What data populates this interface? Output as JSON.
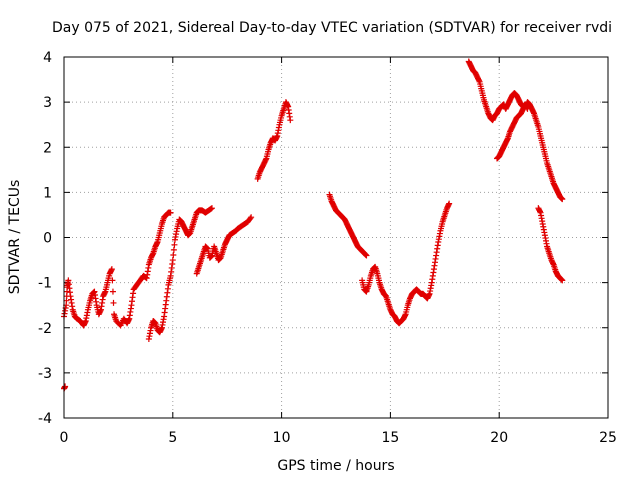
{
  "chart_data": {
    "type": "scatter",
    "title": "Day 075 of 2021, Sidereal Day-to-day VTEC variation (SDTVAR) for receiver rvdi",
    "xlabel": "GPS time / hours",
    "ylabel": "SDTVAR / TECUs",
    "xlim": [
      0,
      25
    ],
    "ylim": [
      -4,
      4
    ],
    "xticks": [
      0,
      5,
      10,
      15,
      20,
      25
    ],
    "yticks": [
      -4,
      -3,
      -2,
      -1,
      0,
      1,
      2,
      3,
      4
    ],
    "grid": true,
    "marker": "+",
    "color": "#e00000",
    "segments": [
      {
        "name": "seg-a",
        "points": [
          [
            0.0,
            -3.35
          ],
          [
            0.05,
            -3.3
          ]
        ]
      },
      {
        "name": "seg-b",
        "points": [
          [
            0.0,
            -1.75
          ],
          [
            0.1,
            -1.5
          ],
          [
            0.15,
            -1.1
          ],
          [
            0.2,
            -0.95
          ],
          [
            0.3,
            -1.3
          ],
          [
            0.4,
            -1.6
          ],
          [
            0.5,
            -1.75
          ],
          [
            0.6,
            -1.8
          ],
          [
            0.75,
            -1.85
          ],
          [
            0.9,
            -1.95
          ],
          [
            1.0,
            -1.85
          ],
          [
            1.1,
            -1.6
          ],
          [
            1.2,
            -1.4
          ],
          [
            1.3,
            -1.25
          ],
          [
            1.4,
            -1.2
          ],
          [
            1.5,
            -1.5
          ],
          [
            1.6,
            -1.7
          ],
          [
            1.7,
            -1.6
          ],
          [
            1.8,
            -1.3
          ],
          [
            1.9,
            -1.2
          ],
          [
            2.0,
            -1.0
          ],
          [
            2.1,
            -0.8
          ],
          [
            2.2,
            -0.7
          ],
          [
            2.3,
            -1.7
          ],
          [
            2.4,
            -1.85
          ],
          [
            2.6,
            -1.95
          ],
          [
            2.75,
            -1.8
          ],
          [
            2.9,
            -1.9
          ],
          [
            3.0,
            -1.8
          ],
          [
            3.1,
            -1.5
          ],
          [
            3.2,
            -1.15
          ],
          [
            3.35,
            -1.05
          ],
          [
            3.5,
            -0.95
          ],
          [
            3.65,
            -0.85
          ],
          [
            3.8,
            -0.9
          ],
          [
            3.9,
            -0.6
          ],
          [
            4.0,
            -0.45
          ],
          [
            4.1,
            -0.35
          ],
          [
            4.2,
            -0.2
          ],
          [
            4.3,
            -0.1
          ],
          [
            4.4,
            0.1
          ],
          [
            4.5,
            0.3
          ],
          [
            4.6,
            0.45
          ],
          [
            4.7,
            0.5
          ],
          [
            4.8,
            0.55
          ],
          [
            4.9,
            0.55
          ]
        ]
      },
      {
        "name": "seg-c",
        "points": [
          [
            3.9,
            -2.25
          ],
          [
            4.0,
            -2.0
          ],
          [
            4.1,
            -1.85
          ],
          [
            4.2,
            -1.9
          ],
          [
            4.3,
            -2.05
          ],
          [
            4.4,
            -2.1
          ],
          [
            4.5,
            -2.0
          ],
          [
            4.6,
            -1.75
          ],
          [
            4.7,
            -1.4
          ],
          [
            4.8,
            -1.05
          ],
          [
            4.9,
            -0.85
          ],
          [
            5.0,
            -0.5
          ],
          [
            5.1,
            -0.05
          ],
          [
            5.2,
            0.2
          ],
          [
            5.3,
            0.4
          ],
          [
            5.4,
            0.35
          ],
          [
            5.5,
            0.25
          ],
          [
            5.6,
            0.15
          ],
          [
            5.7,
            0.05
          ],
          [
            5.8,
            0.1
          ],
          [
            5.9,
            0.25
          ],
          [
            6.0,
            0.4
          ],
          [
            6.1,
            0.55
          ],
          [
            6.2,
            0.6
          ],
          [
            6.35,
            0.6
          ],
          [
            6.5,
            0.55
          ],
          [
            6.65,
            0.6
          ],
          [
            6.8,
            0.65
          ]
        ]
      },
      {
        "name": "seg-d",
        "points": [
          [
            6.1,
            -0.8
          ],
          [
            6.2,
            -0.65
          ],
          [
            6.3,
            -0.5
          ],
          [
            6.4,
            -0.35
          ],
          [
            6.5,
            -0.2
          ],
          [
            6.6,
            -0.25
          ],
          [
            6.7,
            -0.45
          ],
          [
            6.8,
            -0.4
          ],
          [
            6.9,
            -0.2
          ],
          [
            7.0,
            -0.35
          ],
          [
            7.1,
            -0.5
          ],
          [
            7.2,
            -0.45
          ],
          [
            7.3,
            -0.3
          ],
          [
            7.4,
            -0.15
          ],
          [
            7.5,
            -0.05
          ],
          [
            7.6,
            0.05
          ],
          [
            7.75,
            0.1
          ],
          [
            7.9,
            0.15
          ],
          [
            8.0,
            0.2
          ],
          [
            8.15,
            0.25
          ],
          [
            8.3,
            0.3
          ],
          [
            8.45,
            0.35
          ],
          [
            8.6,
            0.45
          ]
        ]
      },
      {
        "name": "seg-e",
        "points": [
          [
            8.9,
            1.3
          ],
          [
            9.0,
            1.45
          ],
          [
            9.1,
            1.55
          ],
          [
            9.2,
            1.65
          ],
          [
            9.3,
            1.75
          ],
          [
            9.4,
            1.95
          ],
          [
            9.5,
            2.1
          ],
          [
            9.6,
            2.2
          ],
          [
            9.7,
            2.15
          ],
          [
            9.8,
            2.25
          ],
          [
            9.9,
            2.5
          ],
          [
            10.0,
            2.7
          ],
          [
            10.1,
            2.85
          ],
          [
            10.2,
            3.0
          ],
          [
            10.3,
            2.9
          ],
          [
            10.4,
            2.6
          ]
        ]
      },
      {
        "name": "seg-f",
        "points": [
          [
            12.2,
            0.95
          ],
          [
            12.3,
            0.8
          ],
          [
            12.4,
            0.7
          ],
          [
            12.5,
            0.6
          ],
          [
            12.6,
            0.55
          ],
          [
            12.7,
            0.5
          ],
          [
            12.8,
            0.45
          ],
          [
            12.9,
            0.4
          ],
          [
            13.0,
            0.3
          ],
          [
            13.1,
            0.2
          ],
          [
            13.2,
            0.1
          ],
          [
            13.3,
            0.0
          ],
          [
            13.4,
            -0.1
          ],
          [
            13.5,
            -0.2
          ],
          [
            13.6,
            -0.25
          ],
          [
            13.7,
            -0.3
          ],
          [
            13.8,
            -0.35
          ],
          [
            13.9,
            -0.4
          ]
        ]
      },
      {
        "name": "seg-g",
        "points": [
          [
            13.7,
            -0.95
          ],
          [
            13.8,
            -1.15
          ],
          [
            13.9,
            -1.2
          ],
          [
            14.0,
            -1.05
          ],
          [
            14.1,
            -0.85
          ],
          [
            14.2,
            -0.7
          ],
          [
            14.3,
            -0.65
          ],
          [
            14.4,
            -0.8
          ],
          [
            14.5,
            -1.0
          ],
          [
            14.6,
            -1.15
          ],
          [
            14.7,
            -1.25
          ],
          [
            14.8,
            -1.3
          ],
          [
            14.9,
            -1.45
          ],
          [
            15.0,
            -1.6
          ],
          [
            15.1,
            -1.7
          ],
          [
            15.2,
            -1.75
          ],
          [
            15.3,
            -1.85
          ],
          [
            15.4,
            -1.9
          ],
          [
            15.5,
            -1.85
          ],
          [
            15.6,
            -1.8
          ],
          [
            15.7,
            -1.7
          ],
          [
            15.8,
            -1.5
          ],
          [
            15.9,
            -1.35
          ],
          [
            16.0,
            -1.25
          ],
          [
            16.1,
            -1.2
          ],
          [
            16.2,
            -1.15
          ],
          [
            16.3,
            -1.2
          ],
          [
            16.4,
            -1.25
          ],
          [
            16.5,
            -1.25
          ],
          [
            16.6,
            -1.3
          ],
          [
            16.7,
            -1.35
          ],
          [
            16.8,
            -1.25
          ],
          [
            16.9,
            -1.0
          ],
          [
            17.0,
            -0.7
          ],
          [
            17.1,
            -0.4
          ],
          [
            17.2,
            -0.1
          ],
          [
            17.3,
            0.15
          ],
          [
            17.4,
            0.35
          ],
          [
            17.5,
            0.5
          ],
          [
            17.6,
            0.65
          ],
          [
            17.7,
            0.75
          ]
        ]
      },
      {
        "name": "seg-h",
        "points": [
          [
            18.6,
            3.9
          ],
          [
            18.7,
            3.8
          ],
          [
            18.8,
            3.7
          ],
          [
            18.9,
            3.65
          ],
          [
            19.0,
            3.55
          ],
          [
            19.1,
            3.45
          ],
          [
            19.2,
            3.25
          ],
          [
            19.3,
            3.05
          ],
          [
            19.4,
            2.9
          ],
          [
            19.5,
            2.75
          ],
          [
            19.6,
            2.65
          ],
          [
            19.7,
            2.6
          ],
          [
            19.8,
            2.7
          ],
          [
            19.9,
            2.75
          ],
          [
            20.0,
            2.85
          ],
          [
            20.1,
            2.9
          ],
          [
            20.2,
            2.95
          ],
          [
            20.3,
            2.85
          ],
          [
            20.4,
            2.95
          ],
          [
            20.5,
            3.05
          ],
          [
            20.6,
            3.15
          ],
          [
            20.7,
            3.2
          ],
          [
            20.8,
            3.15
          ],
          [
            20.9,
            3.05
          ],
          [
            21.0,
            2.95
          ],
          [
            21.1,
            2.9
          ],
          [
            21.2,
            2.95
          ],
          [
            21.3,
            2.85
          ]
        ]
      },
      {
        "name": "seg-i",
        "points": [
          [
            19.9,
            1.75
          ],
          [
            20.0,
            1.8
          ],
          [
            20.1,
            1.9
          ],
          [
            20.2,
            2.0
          ],
          [
            20.3,
            2.1
          ],
          [
            20.4,
            2.2
          ],
          [
            20.5,
            2.35
          ],
          [
            20.6,
            2.45
          ],
          [
            20.7,
            2.55
          ],
          [
            20.8,
            2.65
          ],
          [
            20.9,
            2.7
          ],
          [
            21.0,
            2.75
          ],
          [
            21.1,
            2.85
          ],
          [
            21.2,
            2.9
          ],
          [
            21.3,
            3.0
          ],
          [
            21.4,
            2.95
          ],
          [
            21.5,
            2.85
          ],
          [
            21.6,
            2.75
          ],
          [
            21.7,
            2.6
          ],
          [
            21.8,
            2.45
          ],
          [
            21.9,
            2.25
          ],
          [
            22.0,
            2.05
          ],
          [
            22.1,
            1.85
          ],
          [
            22.2,
            1.65
          ],
          [
            22.3,
            1.5
          ],
          [
            22.4,
            1.35
          ],
          [
            22.5,
            1.2
          ],
          [
            22.6,
            1.1
          ],
          [
            22.7,
            1.0
          ],
          [
            22.8,
            0.9
          ],
          [
            22.9,
            0.85
          ]
        ]
      },
      {
        "name": "seg-j",
        "points": [
          [
            21.8,
            0.65
          ],
          [
            21.9,
            0.55
          ],
          [
            22.0,
            0.3
          ],
          [
            22.1,
            0.05
          ],
          [
            22.2,
            -0.2
          ],
          [
            22.3,
            -0.35
          ],
          [
            22.4,
            -0.5
          ],
          [
            22.5,
            -0.6
          ],
          [
            22.6,
            -0.75
          ],
          [
            22.7,
            -0.85
          ],
          [
            22.8,
            -0.9
          ],
          [
            22.9,
            -0.95
          ]
        ]
      }
    ]
  }
}
